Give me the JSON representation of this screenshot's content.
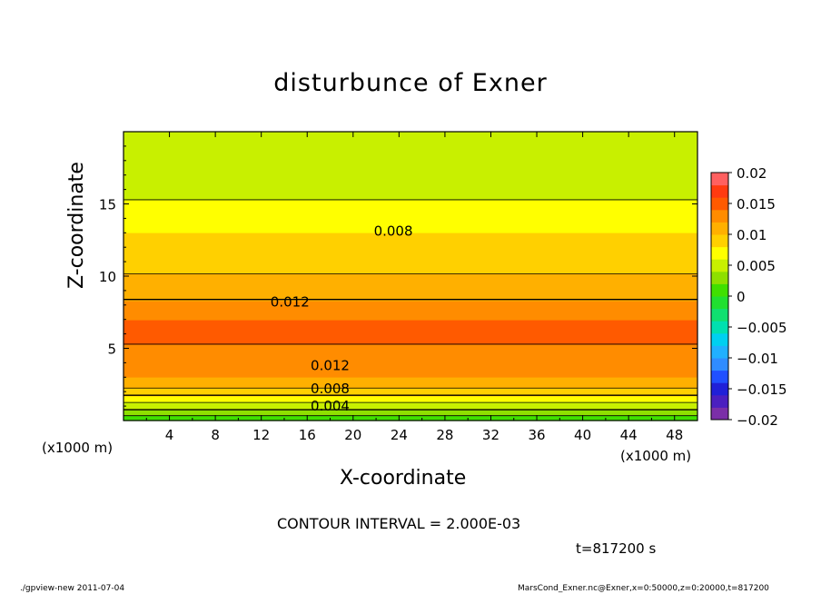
{
  "chart_data": {
    "type": "heatmap",
    "title": "disturbunce of Exner",
    "xlabel": "X-coordinate",
    "ylabel": "Z-coordinate",
    "x_units": "(x1000 m)",
    "y_units": "(x1000 m)",
    "xlim": [
      0,
      50
    ],
    "ylim": [
      0,
      20
    ],
    "x_ticks": [
      4,
      8,
      12,
      16,
      20,
      24,
      28,
      32,
      36,
      40,
      44,
      48
    ],
    "y_ticks": [
      5,
      10,
      15
    ],
    "contour_interval_text": "CONTOUR INTERVAL = 2.000E-03",
    "time_text": "t=817200 s",
    "contour_labels": [
      {
        "text": "0.008",
        "x": 23.5,
        "z": 13.1
      },
      {
        "text": "0.012",
        "x": 14.5,
        "z": 8.2
      },
      {
        "text": "0.012",
        "x": 18,
        "z": 3.8
      },
      {
        "text": "0.008",
        "x": 18,
        "z": 2.2
      },
      {
        "text": "0.004",
        "x": 18,
        "z": 1.0
      }
    ],
    "profile": {
      "z": [
        0,
        0.5,
        1.0,
        1.5,
        2.0,
        2.5,
        3.0,
        3.5,
        4.0,
        5.0,
        6.0,
        7.0,
        8.0,
        9.0,
        10.0,
        11.0,
        12.0,
        13.0,
        14.0,
        15.0,
        16.0,
        17.0,
        18.0,
        19.0,
        20.0
      ],
      "value": [
        0.0,
        0.003,
        0.005,
        0.007,
        0.009,
        0.011,
        0.012,
        0.0125,
        0.013,
        0.0138,
        0.0145,
        0.014,
        0.0125,
        0.0112,
        0.0101,
        0.0095,
        0.0088,
        0.008,
        0.0071,
        0.0062,
        0.0055,
        0.0049,
        0.0044,
        0.0042,
        0.004
      ]
    },
    "colorbar": {
      "ticks": [
        "0.02",
        "0.015",
        "0.01",
        "0.005",
        "0",
        "−0.005",
        "−0.01",
        "−0.015",
        "−0.02"
      ],
      "levels": [
        -0.02,
        -0.018,
        -0.016,
        -0.014,
        -0.012,
        -0.01,
        -0.008,
        -0.006,
        -0.004,
        -0.002,
        0,
        0.002,
        0.004,
        0.006,
        0.008,
        0.01,
        0.012,
        0.014,
        0.016,
        0.018,
        0.02
      ],
      "colors": [
        "#7b2fa8",
        "#4b1fc0",
        "#2020d8",
        "#2050ff",
        "#2f8cff",
        "#20b0ff",
        "#00d0f0",
        "#00e0b0",
        "#10e070",
        "#20e030",
        "#40e000",
        "#8ee000",
        "#c8f000",
        "#ffff00",
        "#ffd000",
        "#ffb000",
        "#ff8c00",
        "#ff5a00",
        "#ff3a10",
        "#ff6060"
      ]
    }
  },
  "footer": {
    "left": "./gpview-new  2011-07-04",
    "right": "MarsCond_Exner.nc@Exner,x=0:50000,z=0:20000,t=817200"
  }
}
